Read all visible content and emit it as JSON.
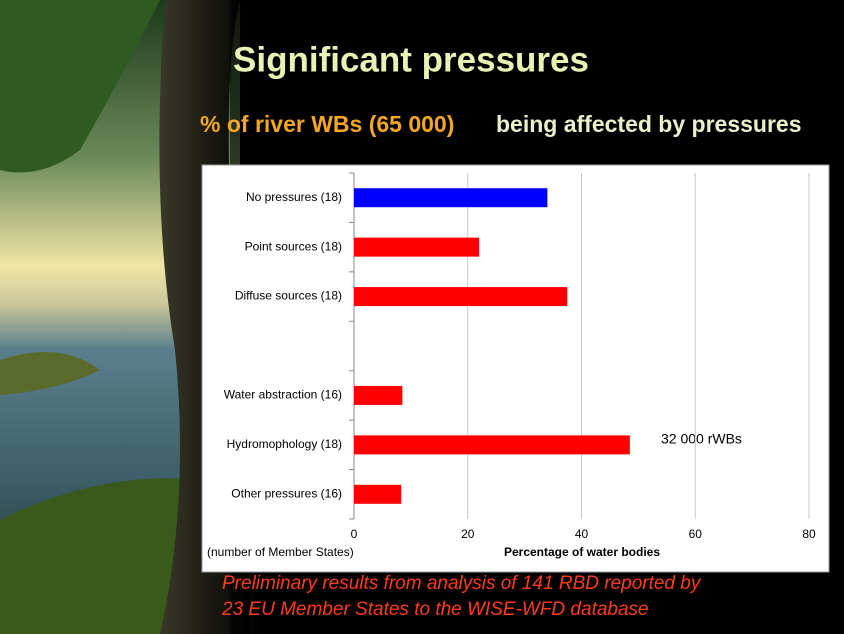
{
  "chart_data": {
    "type": "barh",
    "title": "Significant pressures",
    "subtitle": [
      "% of river WBs (65 000)",
      "being affected by pressures"
    ],
    "categories": [
      "No pressures (18)",
      "Point sources (18)",
      "Diffuse sources (18)",
      null,
      "Water abstraction (16)",
      "Hydromophology (18)",
      "Other pressures (16)"
    ],
    "values": [
      34,
      22,
      37.5,
      null,
      8.5,
      48.5,
      8.3
    ],
    "colors": [
      "#0000ff",
      "#ff0000",
      "#ff0000",
      null,
      "#ff0000",
      "#ff0000",
      "#ff0000"
    ],
    "xlim": [
      0,
      80
    ],
    "xticks": [
      0,
      20,
      40,
      60,
      80
    ],
    "grid": true,
    "xlabel": "Percentage of water bodies",
    "ylabel": "(number of Member States)",
    "annotation": "32 000 rWBs",
    "footnote": [
      "Preliminary results from analysis of 141 RBD reported by",
      "23 EU Member States to the WISE-WFD database"
    ]
  }
}
